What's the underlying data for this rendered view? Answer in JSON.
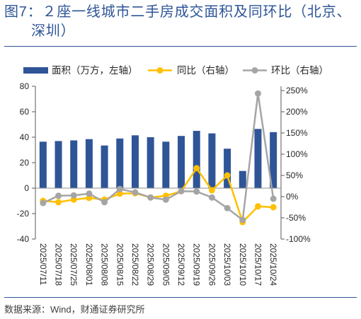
{
  "header": {
    "figure_label": "图7："
  },
  "footer": {
    "source": "数据来源：Wind，财通证券研究所"
  },
  "colors": {
    "accent": "#2F5597"
  },
  "chart_data": {
    "type": "bar",
    "title": "２座一线城市二手房成交面积及同环比（北京、深圳）",
    "categories": [
      "2025/07/11",
      "2025/07/18",
      "2025/07/25",
      "2025/08/01",
      "2025/08/08",
      "2025/08/15",
      "2025/08/22",
      "2025/08/29",
      "2025/09/05",
      "2025/09/12",
      "2025/09/19",
      "2025/09/26",
      "2025/10/03",
      "2025/10/10",
      "2025/10/17",
      "2025/10/24"
    ],
    "series": [
      {
        "name": "面积（万方，左轴）",
        "type": "bar",
        "axis": "left",
        "color": "#2F5597",
        "values": [
          36.5,
          37,
          37.5,
          38.5,
          33.5,
          39,
          41.5,
          40,
          36.5,
          41,
          45,
          43,
          31,
          13.5,
          46.5,
          44
        ]
      },
      {
        "name": "同比（右轴）",
        "type": "line",
        "axis": "right",
        "color": "#FFC000",
        "values": [
          -10,
          -13,
          -7,
          -3,
          -7,
          7,
          8,
          -2,
          2,
          13,
          67,
          15,
          50,
          -60,
          -23,
          -25
        ]
      },
      {
        "name": "环比（右轴）",
        "type": "line",
        "axis": "right",
        "color": "#A5A5A5",
        "values": [
          -15,
          2,
          3,
          7,
          -13,
          18,
          10,
          -2,
          -7,
          13,
          12,
          -2,
          -27,
          -55,
          243,
          -5
        ]
      }
    ],
    "y_left": {
      "lim": [
        -40,
        80
      ],
      "ticks": [
        80,
        60,
        40,
        20,
        0,
        -20,
        -40
      ]
    },
    "y_right": {
      "lim": [
        -100,
        260
      ],
      "ticks": [
        250,
        200,
        150,
        100,
        50,
        0,
        -50,
        -100
      ],
      "tick_labels": [
        "250%",
        "200%",
        "150%",
        "100%",
        "50%",
        "0%",
        "-50%",
        "-100%"
      ]
    },
    "grid": false,
    "legend": "top"
  }
}
